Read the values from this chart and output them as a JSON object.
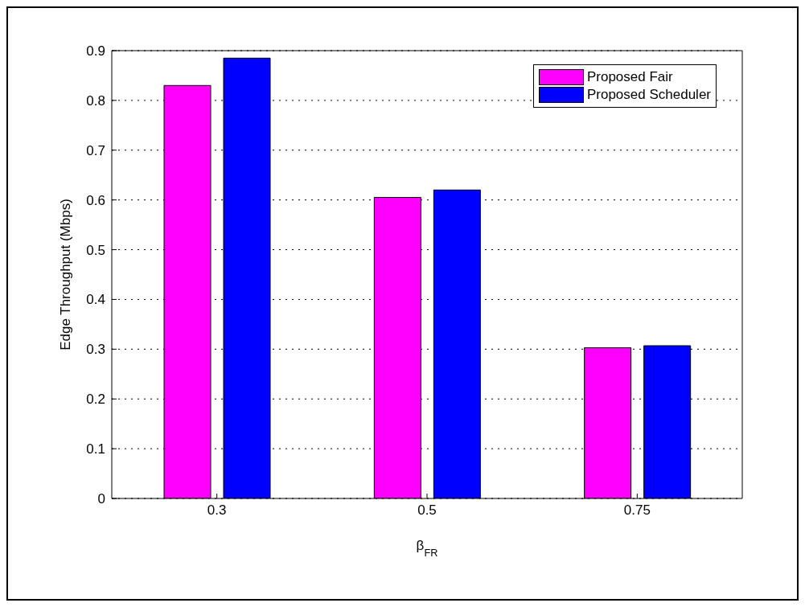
{
  "chart_data": {
    "type": "bar",
    "xlabel": "β$_{FR}$",
    "ylabel": "Edge Throughput (Mbps)",
    "categories": [
      "0.3",
      "0.5",
      "0.75"
    ],
    "series": [
      {
        "name": "Proposed Fair",
        "color": "#ff00ff",
        "values": [
          0.83,
          0.605,
          0.303
        ]
      },
      {
        "name": "Proposed Scheduler",
        "color": "#0000ff",
        "values": [
          0.885,
          0.62,
          0.307
        ]
      }
    ],
    "ylim": [
      0,
      0.9
    ],
    "yticks": [
      0,
      0.1,
      0.2,
      0.3,
      0.4,
      0.5,
      0.6,
      0.7,
      0.8,
      0.9
    ],
    "grid": "y",
    "legend": "top right"
  }
}
